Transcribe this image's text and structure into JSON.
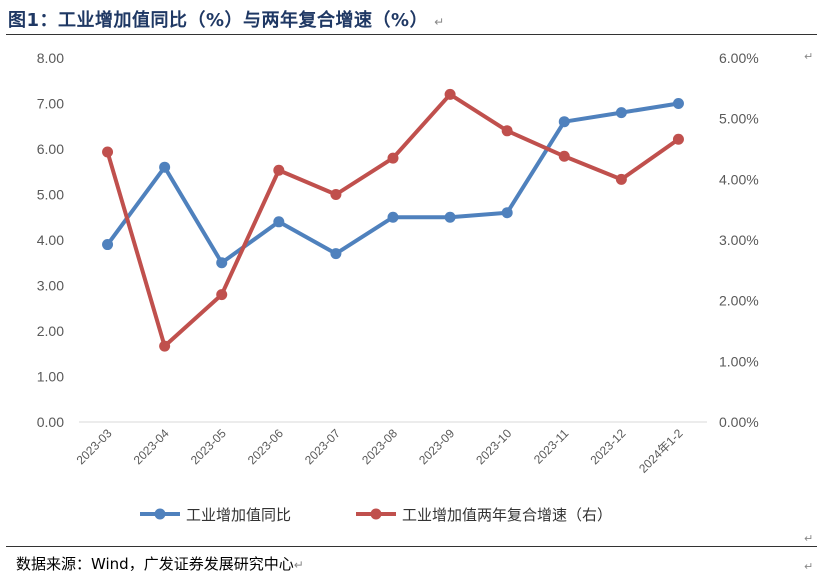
{
  "title": "图1：工业增加值同比（%）与两年复合增速（%）",
  "source": "数据来源：Wind，广发证券发展研究中心",
  "colors": {
    "blue": "#4f81bd",
    "red": "#c0504d",
    "title": "#1f3864"
  },
  "chart_data": {
    "type": "line",
    "categories": [
      "2023-03",
      "2023-04",
      "2023-05",
      "2023-06",
      "2023-07",
      "2023-08",
      "2023-09",
      "2023-10",
      "2023-11",
      "2023-12",
      "2024年1-2"
    ],
    "series": [
      {
        "name": "工业增加值同比",
        "axis": "left",
        "color": "#4f81bd",
        "values": [
          3.9,
          5.6,
          3.5,
          4.4,
          3.7,
          4.5,
          4.5,
          4.6,
          6.6,
          6.8,
          7.0
        ]
      },
      {
        "name": "工业增加值两年复合增速（右）",
        "axis": "right",
        "color": "#c0504d",
        "values": [
          4.45,
          1.25,
          2.1,
          4.15,
          3.75,
          4.35,
          5.4,
          4.8,
          4.38,
          4.0,
          4.66
        ]
      }
    ],
    "y_left": {
      "range": [
        0,
        8
      ],
      "ticks": [
        "0.00",
        "1.00",
        "2.00",
        "3.00",
        "4.00",
        "5.00",
        "6.00",
        "7.00",
        "8.00"
      ]
    },
    "y_right": {
      "range": [
        0,
        6
      ],
      "ticks": [
        "0.00%",
        "1.00%",
        "2.00%",
        "3.00%",
        "4.00%",
        "5.00%",
        "6.00%"
      ]
    },
    "grid": false,
    "legend": "bottom"
  }
}
